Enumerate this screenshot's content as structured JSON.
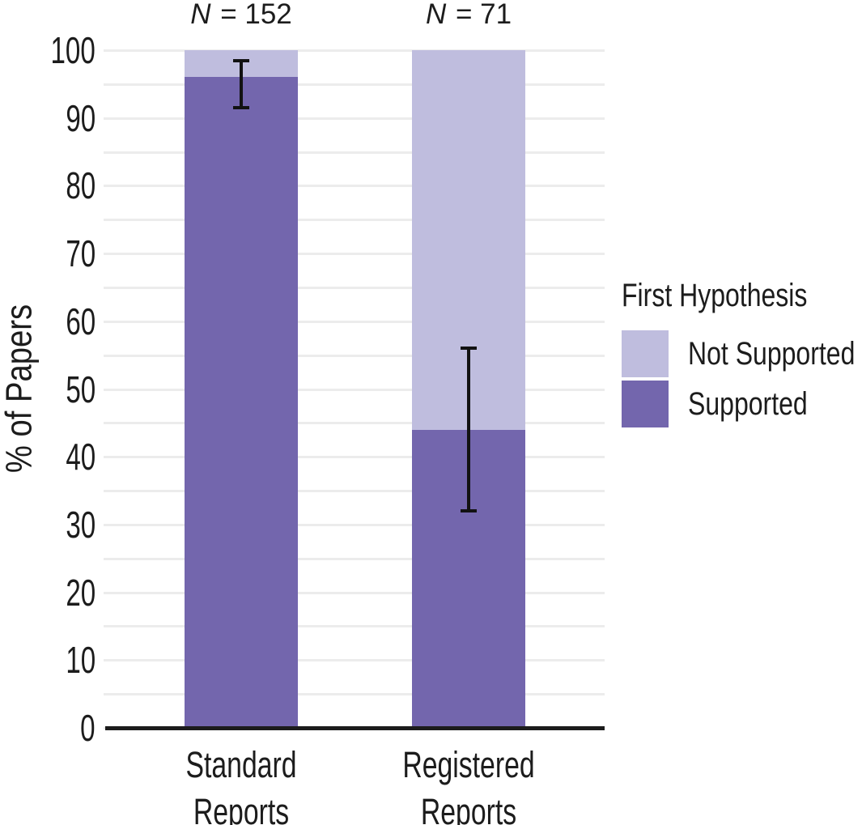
{
  "chart_data": {
    "type": "bar",
    "subtype": "stacked-percentage",
    "categories": [
      "Standard Reports",
      "Registered Reports"
    ],
    "category_label_lines": [
      [
        "Standard",
        "Reports"
      ],
      [
        "Registered",
        "Reports"
      ]
    ],
    "n_labels": [
      "N = 152",
      "N = 71"
    ],
    "series": [
      {
        "name": "Supported",
        "values": [
          96,
          44
        ],
        "color": "#7366ad"
      },
      {
        "name": "Not Supported",
        "values": [
          4,
          56
        ],
        "color": "#bfbdde"
      }
    ],
    "error_bars_supported": [
      [
        91.5,
        98.5
      ],
      [
        32,
        56
      ]
    ],
    "title": "",
    "xlabel": "",
    "ylabel": "% of Papers",
    "ylim": [
      0,
      100
    ],
    "yticks": [
      0,
      10,
      20,
      30,
      40,
      50,
      60,
      70,
      80,
      90,
      100
    ],
    "grid_interval": 5,
    "grid_on": true,
    "legend": {
      "position": "right",
      "title": "First Hypothesis",
      "entries": [
        {
          "label": "Not Supported",
          "color": "#bfbdde"
        },
        {
          "label": "Supported",
          "color": "#7366ad"
        }
      ]
    },
    "colors": {
      "supported": "#7366ad",
      "not_supported": "#bfbdde",
      "grid": "#ececec",
      "axis": "#1c1c1c",
      "error_bar": "#121212",
      "background": "#ffffff"
    }
  }
}
